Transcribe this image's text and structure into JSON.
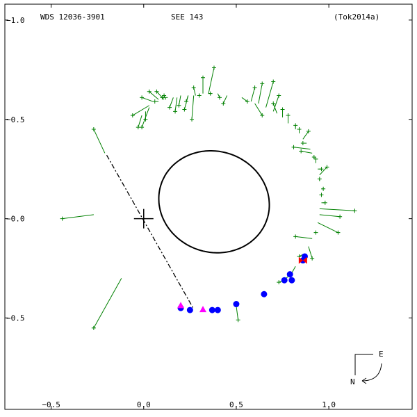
{
  "header": {
    "left": "WDS 12036-3901",
    "center": "SEE 143",
    "right": "(Tok2014a)"
  },
  "compass": {
    "east": "E",
    "north": "N"
  },
  "colors": {
    "frame": "#000000",
    "orbit": "#000000",
    "residual": "#008000",
    "visual_obs": "#008000",
    "speckle_obs": "#0000ff",
    "magenta_obs": "#ff00ff",
    "red_obs": "#ff0000"
  },
  "chart_data": {
    "type": "scatter",
    "xlim": [
      -0.75,
      1.45
    ],
    "ylim": [
      -0.96,
      1.08
    ],
    "x_ticks": [
      {
        "v": -0.5,
        "label": "−0.5"
      },
      {
        "v": 0.0,
        "label": "0.0"
      },
      {
        "v": 0.5,
        "label": "0.5"
      },
      {
        "v": 1.0,
        "label": "1.0"
      }
    ],
    "y_ticks": [
      {
        "v": 1.0,
        "label": "−1.0"
      },
      {
        "v": 0.5,
        "label": "−0.5"
      },
      {
        "v": 0.0,
        "label": "−0.0"
      },
      {
        "v": -0.5,
        "label": "−0.5"
      }
    ],
    "primary": [
      0.0,
      0.0
    ],
    "orbit": {
      "center": [
        0.38,
        0.085
      ],
      "a": 0.3,
      "b": 0.255,
      "theta": -0.19
    },
    "node_line": [
      [
        -0.2,
        0.32
      ],
      [
        0.27,
        -0.455
      ]
    ],
    "series": [
      {
        "kind": "visual",
        "obs": [
          [
            -0.44,
            0.0
          ],
          [
            -0.27,
            -0.55
          ],
          [
            0.51,
            -0.51
          ],
          [
            -0.27,
            0.45
          ],
          [
            -0.06,
            0.52
          ],
          [
            -0.01,
            0.61
          ],
          [
            0.03,
            0.64
          ],
          [
            0.07,
            0.64
          ],
          [
            0.1,
            0.61
          ],
          [
            0.14,
            0.56
          ],
          [
            0.19,
            0.57
          ],
          [
            0.23,
            0.59
          ],
          [
            0.27,
            0.66
          ],
          [
            0.32,
            0.71
          ],
          [
            0.38,
            0.76
          ],
          [
            0.26,
            0.5
          ],
          [
            0.22,
            0.55
          ],
          [
            0.3,
            0.62
          ],
          [
            0.36,
            0.63
          ],
          [
            0.41,
            0.61
          ],
          [
            0.43,
            0.58
          ],
          [
            0.6,
            0.66
          ],
          [
            0.64,
            0.68
          ],
          [
            0.7,
            0.69
          ],
          [
            0.73,
            0.62
          ],
          [
            0.7,
            0.58
          ],
          [
            0.75,
            0.55
          ],
          [
            0.78,
            0.52
          ],
          [
            0.82,
            0.47
          ],
          [
            0.84,
            0.45
          ],
          [
            0.89,
            0.44
          ],
          [
            0.86,
            0.38
          ],
          [
            0.81,
            0.36
          ],
          [
            0.85,
            0.34
          ],
          [
            0.92,
            0.31
          ],
          [
            0.93,
            0.3
          ],
          [
            0.96,
            0.25
          ],
          [
            0.99,
            0.26
          ],
          [
            0.95,
            0.2
          ],
          [
            0.97,
            0.15
          ],
          [
            0.96,
            0.12
          ],
          [
            0.98,
            0.08
          ],
          [
            1.14,
            0.04
          ],
          [
            1.06,
            0.01
          ],
          [
            1.05,
            -0.07
          ],
          [
            0.93,
            -0.07
          ],
          [
            0.82,
            -0.09
          ],
          [
            0.91,
            -0.2
          ],
          [
            0.84,
            -0.19
          ],
          [
            0.79,
            -0.29
          ],
          [
            0.76,
            -0.31
          ],
          [
            0.73,
            -0.32
          ],
          [
            -0.03,
            0.46
          ],
          [
            0.01,
            0.5
          ],
          [
            -0.01,
            0.46
          ],
          [
            0.06,
            0.59
          ],
          [
            0.11,
            0.62
          ],
          [
            0.17,
            0.54
          ],
          [
            0.56,
            0.59
          ],
          [
            0.64,
            0.52
          ]
        ],
        "fit": [
          [
            -0.27,
            0.02
          ],
          [
            -0.12,
            -0.3
          ],
          [
            0.5,
            -0.44
          ],
          [
            -0.21,
            0.33
          ],
          [
            0.03,
            0.57
          ],
          [
            0.05,
            0.59
          ],
          [
            0.08,
            0.6
          ],
          [
            0.11,
            0.6
          ],
          [
            0.13,
            0.61
          ],
          [
            0.16,
            0.61
          ],
          [
            0.2,
            0.62
          ],
          [
            0.24,
            0.62
          ],
          [
            0.28,
            0.62
          ],
          [
            0.32,
            0.63
          ],
          [
            0.35,
            0.63
          ],
          [
            0.27,
            0.62
          ],
          [
            0.24,
            0.62
          ],
          [
            0.3,
            0.63
          ],
          [
            0.35,
            0.63
          ],
          [
            0.4,
            0.63
          ],
          [
            0.45,
            0.62
          ],
          [
            0.58,
            0.59
          ],
          [
            0.62,
            0.58
          ],
          [
            0.66,
            0.56
          ],
          [
            0.7,
            0.54
          ],
          [
            0.72,
            0.53
          ],
          [
            0.75,
            0.51
          ],
          [
            0.78,
            0.48
          ],
          [
            0.82,
            0.45
          ],
          [
            0.84,
            0.43
          ],
          [
            0.86,
            0.4
          ],
          [
            0.88,
            0.38
          ],
          [
            0.9,
            0.35
          ],
          [
            0.91,
            0.33
          ],
          [
            0.92,
            0.3
          ],
          [
            0.93,
            0.28
          ],
          [
            0.94,
            0.25
          ],
          [
            0.95,
            0.22
          ],
          [
            0.95,
            0.19
          ],
          [
            0.96,
            0.15
          ],
          [
            0.96,
            0.12
          ],
          [
            0.96,
            0.08
          ],
          [
            0.95,
            0.05
          ],
          [
            0.95,
            0.02
          ],
          [
            0.94,
            -0.02
          ],
          [
            0.93,
            -0.06
          ],
          [
            0.91,
            -0.1
          ],
          [
            0.89,
            -0.14
          ],
          [
            0.86,
            -0.18
          ],
          [
            0.82,
            -0.24
          ],
          [
            0.79,
            -0.28
          ],
          [
            0.76,
            -0.31
          ],
          [
            -0.01,
            0.52
          ],
          [
            0.01,
            0.54
          ],
          [
            0.03,
            0.56
          ],
          [
            0.08,
            0.59
          ],
          [
            0.12,
            0.6
          ],
          [
            0.18,
            0.61
          ],
          [
            0.53,
            0.61
          ],
          [
            0.6,
            0.58
          ]
        ]
      },
      {
        "kind": "speckle",
        "points": [
          [
            0.2,
            -0.45
          ],
          [
            0.25,
            -0.46
          ],
          [
            0.37,
            -0.46
          ],
          [
            0.4,
            -0.46
          ],
          [
            0.5,
            -0.43
          ],
          [
            0.65,
            -0.38
          ],
          [
            0.76,
            -0.31
          ],
          [
            0.79,
            -0.28
          ],
          [
            0.8,
            -0.31
          ],
          [
            0.87,
            -0.19
          ],
          [
            0.86,
            -0.21
          ]
        ]
      },
      {
        "kind": "magenta",
        "points": [
          [
            0.2,
            -0.44
          ],
          [
            0.32,
            -0.46
          ]
        ]
      },
      {
        "kind": "red",
        "points": [
          [
            0.86,
            -0.21
          ]
        ]
      }
    ]
  }
}
